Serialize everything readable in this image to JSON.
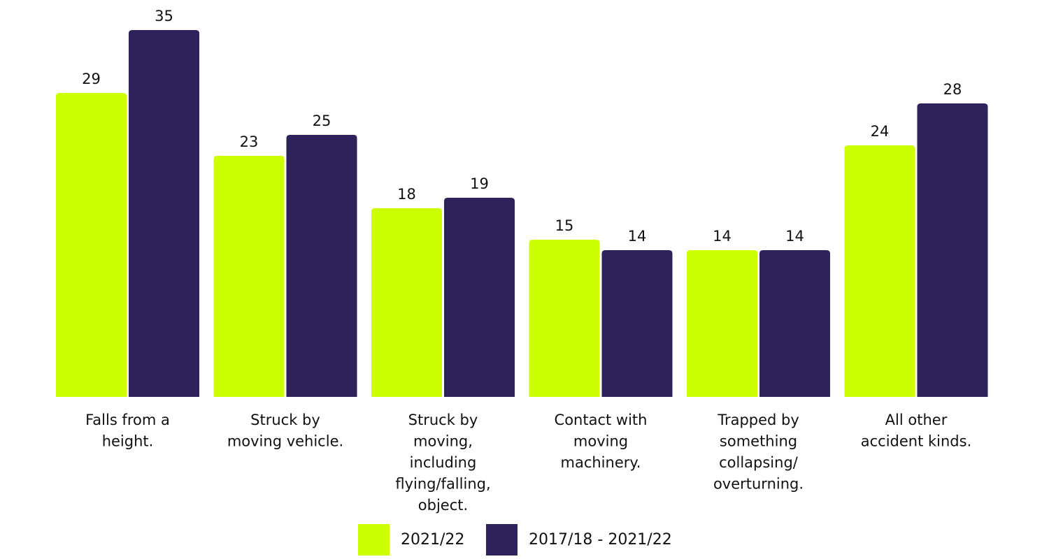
{
  "chart_data": {
    "type": "bar",
    "title": "",
    "xlabel": "",
    "ylabel": "",
    "ylim": [
      0,
      35
    ],
    "grid": false,
    "legend_position": "bottom-center",
    "categories": [
      [
        "Falls from a",
        "height."
      ],
      [
        "Struck by",
        "moving vehicle."
      ],
      [
        "Struck by",
        "moving,",
        "including",
        "flying/falling,",
        "object."
      ],
      [
        "Contact with",
        "moving",
        "machinery."
      ],
      [
        "Trapped by",
        "something",
        "collapsing/",
        "overturning."
      ],
      [
        "All other",
        "accident kinds."
      ]
    ],
    "series": [
      {
        "name": "2021/22",
        "color": "#CCFF00",
        "values": [
          29,
          23,
          18,
          15,
          14,
          24
        ]
      },
      {
        "name": "2017/18 - 2021/22",
        "color": "#2F215A",
        "values": [
          35,
          25,
          19,
          14,
          14,
          28
        ]
      }
    ]
  }
}
